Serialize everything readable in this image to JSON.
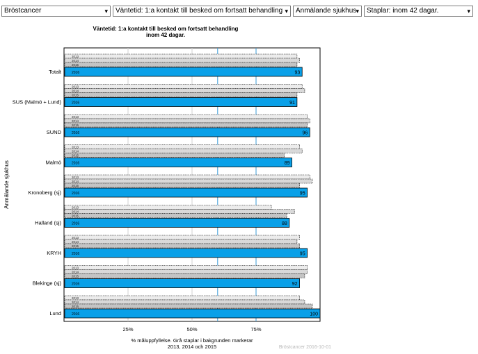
{
  "toolbar": {
    "selects": [
      {
        "name": "cancer-type-select",
        "value": "Bröstcancer"
      },
      {
        "name": "measure-select",
        "value": "Väntetid: 1:a kontakt till besked om fortsatt behandling"
      },
      {
        "name": "grouping-select",
        "value": "Anmälande sjukhus"
      },
      {
        "name": "bars-select",
        "value": "Staplar: inom 42 dagar."
      }
    ],
    "chevron": "▾"
  },
  "chart_data": {
    "type": "bar",
    "orientation": "horizontal",
    "title": "Väntetid: 1:a kontakt till besked om fortsatt behandling\ninom 42 dagar.",
    "ylabel": "Anmälande sjukhus",
    "xlabel": "% måluppfyllelse. Grå staplar i bakgrunden markerar\n2013, 2014 och 2015",
    "footnote": "Bröstcancer 2016-10-01",
    "xlim": [
      0,
      100
    ],
    "xticks": [
      25,
      50,
      75
    ],
    "xtick_labels": [
      "25%",
      "50%",
      "75%"
    ],
    "reference_lines": [
      60,
      75
    ],
    "categories": [
      "Totalt",
      "SUS (Malmö + Lund)",
      "SUND",
      "Malmö",
      "Kronoberg (sj)",
      "Halland (sj)",
      "KRYH",
      "Blekinge (sj)",
      "Lund"
    ],
    "years": [
      "2013",
      "2014",
      "2015",
      "2016"
    ],
    "highlight_year": "2016",
    "colors": {
      "current": "#09a0e8",
      "y2013": "#ececec",
      "y2014": "#d9d9d9",
      "y2015": "#c4c4c4",
      "refline": "#3a9ad6"
    },
    "series": [
      {
        "name": "2013",
        "values": [
          91,
          93,
          95,
          92,
          96,
          81,
          92,
          95,
          92
        ]
      },
      {
        "name": "2014",
        "values": [
          92,
          94,
          96,
          93,
          97,
          90,
          91,
          95,
          94
        ]
      },
      {
        "name": "2015",
        "values": [
          91,
          91,
          95,
          86,
          92,
          87,
          92,
          94,
          97
        ]
      },
      {
        "name": "2016",
        "values": [
          93,
          91,
          96,
          89,
          95,
          88,
          95,
          92,
          100
        ]
      }
    ],
    "value_labels": [
      "93",
      "91",
      "96",
      "89",
      "95",
      "88",
      "95",
      "92",
      "100"
    ]
  }
}
